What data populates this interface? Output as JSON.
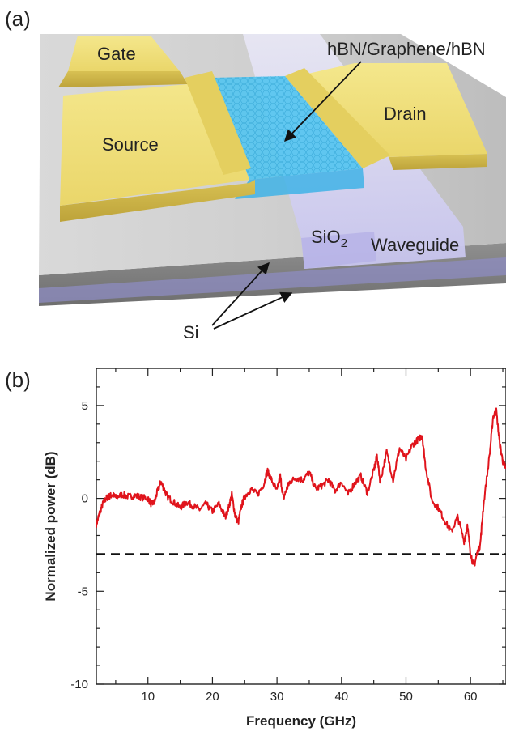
{
  "panels": {
    "a": "(a)",
    "b": "(b)"
  },
  "device": {
    "gate": "Gate",
    "source": "Source",
    "drain": "Drain",
    "stack": "hBN/Graphene/hBN",
    "oxide_base": "SiO",
    "oxide_sub": "2",
    "waveguide": "Waveguide",
    "substrate": "Si"
  },
  "colors": {
    "electrode": "#f0e07a",
    "graphene": "#4fc6ef",
    "waveguide": "#c9c6ef",
    "trace": "#e0141c"
  },
  "chart_data": {
    "type": "line",
    "xlabel": "Frequency (GHz)",
    "ylabel": "Normalized power (dB)",
    "xlim": [
      2,
      65.5
    ],
    "ylim": [
      -10,
      7
    ],
    "xticks": [
      10,
      20,
      30,
      40,
      50,
      60
    ],
    "yticks": [
      5,
      0,
      -5,
      -10
    ],
    "reference_line_db": -3,
    "series": [
      {
        "x": [
          2,
          2.5,
          3,
          3.5,
          4,
          4.5,
          5,
          6,
          7,
          8,
          9,
          10,
          10.5,
          11,
          11.5,
          12,
          12.5,
          13,
          14,
          15,
          16,
          17,
          18,
          19,
          20,
          21,
          22,
          22.5,
          23,
          23.5,
          24,
          24.5,
          25,
          26,
          27,
          28,
          28.5,
          29,
          30,
          30.5,
          31,
          31.5,
          32,
          33,
          34,
          35,
          36,
          37,
          38,
          39,
          40,
          41,
          42,
          43,
          44,
          45,
          45.5,
          46,
          47,
          48,
          49,
          50,
          51,
          52,
          52.5,
          53,
          54,
          55,
          56,
          57,
          58,
          59,
          59.5,
          60,
          60.5,
          61,
          61.5,
          62,
          63,
          63.5,
          64,
          64.5,
          65,
          65.5
        ],
        "y": [
          -1.4,
          -0.8,
          -0.3,
          0.0,
          0.1,
          0.2,
          0.05,
          0.2,
          0.1,
          0.15,
          0.05,
          0.0,
          -0.3,
          -0.2,
          0.4,
          0.9,
          0.5,
          0.1,
          -0.2,
          -0.5,
          -0.2,
          -0.4,
          -0.6,
          -0.3,
          -0.7,
          -0.3,
          -1.0,
          -0.5,
          0.2,
          -0.9,
          -1.3,
          -0.4,
          0.1,
          0.5,
          0.2,
          0.8,
          1.5,
          1.1,
          0.4,
          1.2,
          0.0,
          0.5,
          0.9,
          1.1,
          1.0,
          1.4,
          0.5,
          0.7,
          1.0,
          0.4,
          0.9,
          0.2,
          0.8,
          1.2,
          0.3,
          1.5,
          2.3,
          0.9,
          2.5,
          1.0,
          2.7,
          2.1,
          2.9,
          3.2,
          3.4,
          1.8,
          -0.1,
          -0.5,
          -1.2,
          -1.8,
          -1.0,
          -2.3,
          -1.5,
          -2.9,
          -3.7,
          -3.0,
          -2.5,
          -0.4,
          2.5,
          4.4,
          4.7,
          3.0,
          2.0,
          1.6
        ]
      }
    ]
  }
}
